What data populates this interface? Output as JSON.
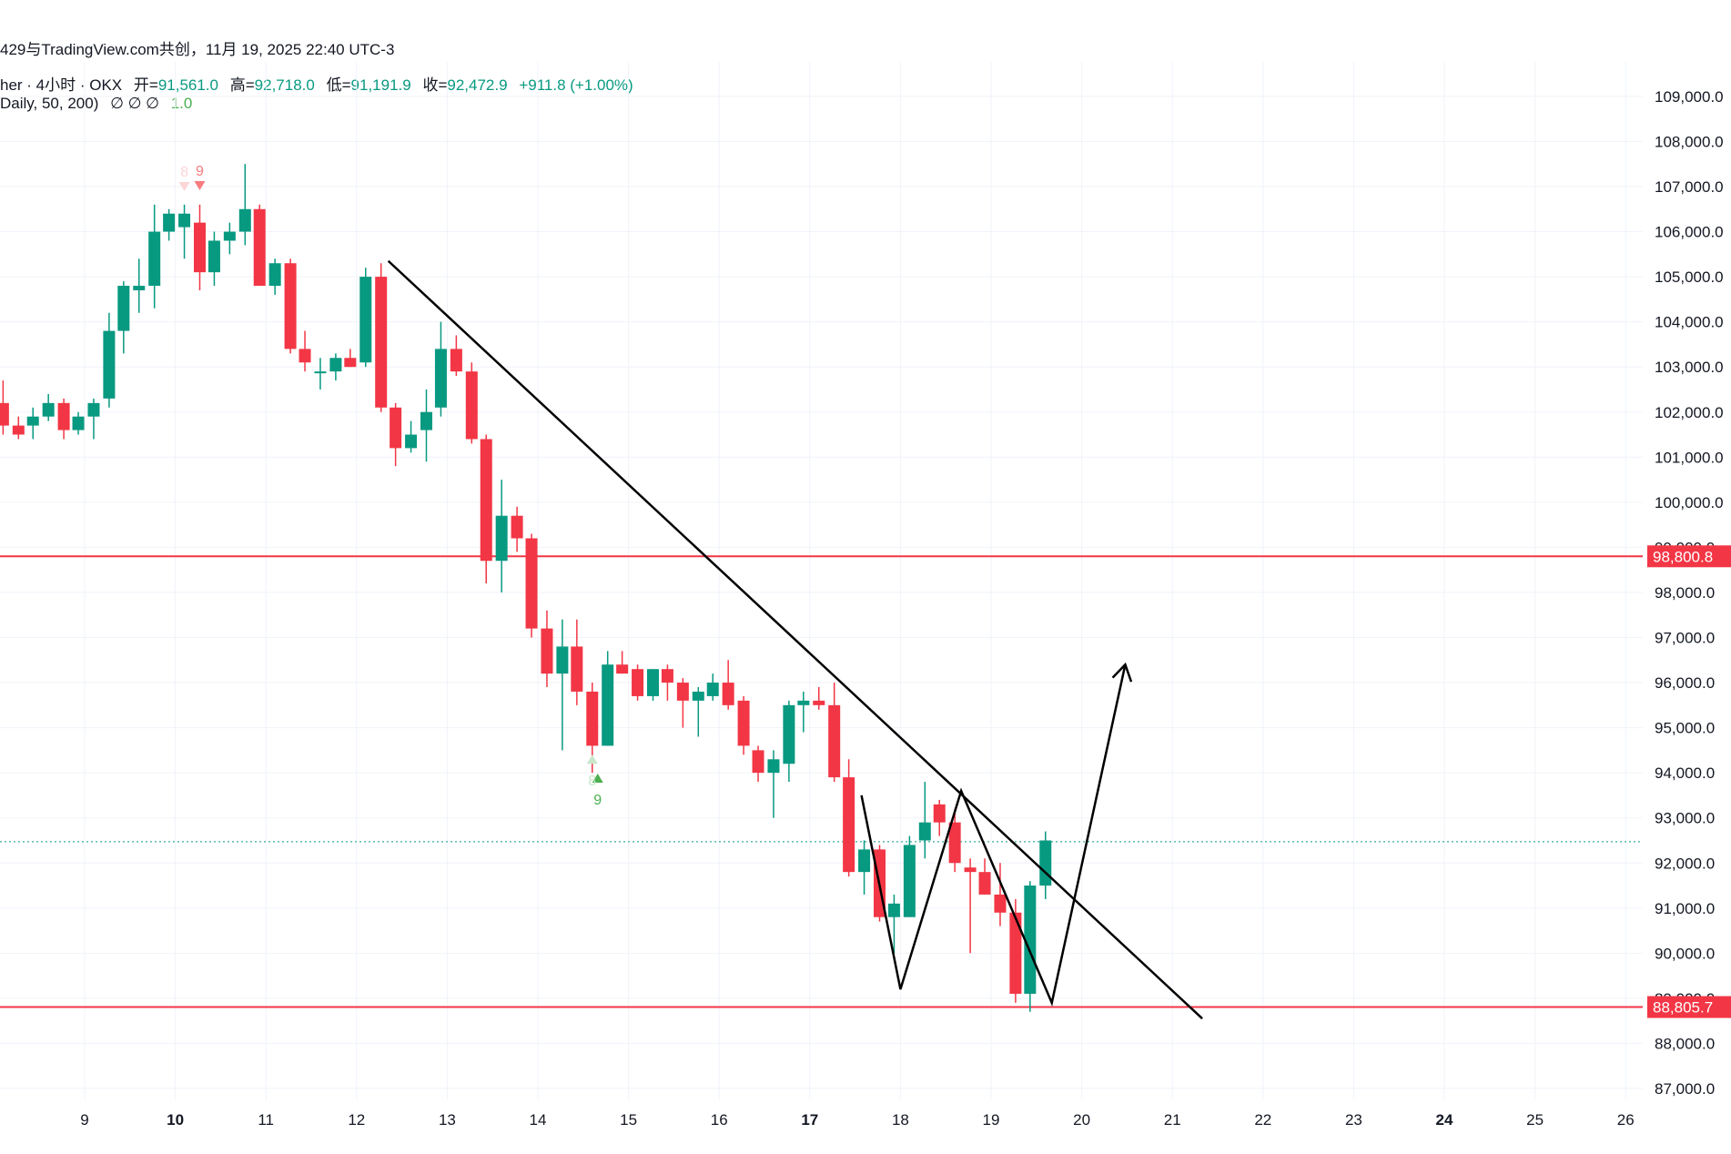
{
  "header": {
    "share_text": "429与TradingView.com共创，11月 19, 2025 22:40 UTC-3",
    "symbol": "her · 4小时 · OKX",
    "open_label": "开=",
    "open_value": "91,561.0",
    "high_label": "高=",
    "high_value": "92,718.0",
    "low_label": "低=",
    "low_value": "91,191.9",
    "close_label": "收=",
    "close_value": "92,472.9",
    "change": "+911.8 (+1.00%)",
    "indicator": "Daily, 50, 200)",
    "indicator_values": "∅  ∅  ∅",
    "indicator_last": "1.0"
  },
  "colors": {
    "up": "#089981",
    "down": "#f23645",
    "level": "#f23645",
    "grid": "#f0f3fa",
    "text": "#131722",
    "axis_text": "#131722"
  },
  "chart_data": {
    "type": "candlestick",
    "timeframe": "4小时",
    "exchange": "OKX",
    "ylim": [
      86700,
      109500
    ],
    "y_ticks": [
      "87,000.0",
      "88,000.0",
      "89,000.0",
      "90,000.0",
      "91,000.0",
      "92,000.0",
      "93,000.0",
      "94,000.0",
      "95,000.0",
      "96,000.0",
      "97,000.0",
      "98,000.0",
      "99,000.0",
      "100,000.0",
      "101,000.0",
      "102,000.0",
      "103,000.0",
      "104,000.0",
      "105,000.0",
      "106,000.0",
      "107,000.0",
      "108,000.0",
      "109,000.0"
    ],
    "x_labels": [
      {
        "t": 9,
        "label": "9",
        "bold": false
      },
      {
        "t": 10,
        "label": "10",
        "bold": true
      },
      {
        "t": 11,
        "label": "11",
        "bold": false
      },
      {
        "t": 12,
        "label": "12",
        "bold": false
      },
      {
        "t": 13,
        "label": "13",
        "bold": false
      },
      {
        "t": 14,
        "label": "14",
        "bold": false
      },
      {
        "t": 15,
        "label": "15",
        "bold": false
      },
      {
        "t": 16,
        "label": "16",
        "bold": false
      },
      {
        "t": 17,
        "label": "17",
        "bold": true
      },
      {
        "t": 18,
        "label": "18",
        "bold": false
      },
      {
        "t": 19,
        "label": "19",
        "bold": false
      },
      {
        "t": 20,
        "label": "20",
        "bold": false
      },
      {
        "t": 21,
        "label": "21",
        "bold": false
      },
      {
        "t": 22,
        "label": "22",
        "bold": false
      },
      {
        "t": 23,
        "label": "23",
        "bold": false
      },
      {
        "t": 24,
        "label": "24",
        "bold": true
      },
      {
        "t": 25,
        "label": "25",
        "bold": false
      },
      {
        "t": 26,
        "label": "26",
        "bold": false
      }
    ],
    "candles": [
      [
        8.1,
        102200,
        102700,
        101500,
        101700
      ],
      [
        8.27,
        101700,
        101900,
        101400,
        101500
      ],
      [
        8.43,
        101700,
        102100,
        101400,
        101900
      ],
      [
        8.6,
        101900,
        102400,
        101800,
        102200
      ],
      [
        8.77,
        102200,
        102300,
        101400,
        101600
      ],
      [
        8.93,
        101600,
        102000,
        101500,
        101900
      ],
      [
        9.1,
        101900,
        102300,
        101400,
        102200
      ],
      [
        9.27,
        102300,
        104200,
        102100,
        103800
      ],
      [
        9.43,
        103800,
        104900,
        103300,
        104800
      ],
      [
        9.6,
        104700,
        105400,
        104200,
        104800
      ],
      [
        9.77,
        104800,
        106600,
        104300,
        106000
      ],
      [
        9.93,
        106000,
        106500,
        105800,
        106400
      ],
      [
        10.1,
        106100,
        106600,
        105400,
        106400
      ],
      [
        10.27,
        106200,
        106600,
        104700,
        105100
      ],
      [
        10.43,
        105100,
        106000,
        104800,
        105800
      ],
      [
        10.6,
        105800,
        106200,
        105500,
        106000
      ],
      [
        10.77,
        106000,
        107500,
        105700,
        106500
      ],
      [
        10.93,
        106500,
        106600,
        104800,
        104800
      ],
      [
        11.1,
        104800,
        105400,
        104600,
        105300
      ],
      [
        11.27,
        105300,
        105400,
        103300,
        103400
      ],
      [
        11.43,
        103400,
        103800,
        102900,
        103100
      ],
      [
        11.6,
        102900,
        103200,
        102500,
        102900
      ],
      [
        11.77,
        102900,
        103300,
        102700,
        103200
      ],
      [
        11.93,
        103200,
        103400,
        103000,
        103000
      ],
      [
        12.1,
        103100,
        105200,
        103000,
        105000
      ],
      [
        12.27,
        105000,
        105300,
        102000,
        102100
      ],
      [
        12.43,
        102100,
        102200,
        100800,
        101200
      ],
      [
        12.6,
        101200,
        101800,
        101100,
        101500
      ],
      [
        12.77,
        101600,
        102500,
        100900,
        102000
      ],
      [
        12.93,
        102100,
        104000,
        101900,
        103400
      ],
      [
        13.1,
        103400,
        103700,
        102800,
        102900
      ],
      [
        13.27,
        102900,
        103100,
        101300,
        101400
      ],
      [
        13.43,
        101400,
        101500,
        98200,
        98700
      ],
      [
        13.6,
        98700,
        100500,
        98000,
        99700
      ],
      [
        13.77,
        99700,
        99900,
        98900,
        99200
      ],
      [
        13.93,
        99200,
        99300,
        97000,
        97200
      ],
      [
        14.1,
        97200,
        97600,
        95900,
        96200
      ],
      [
        14.27,
        96200,
        97400,
        94500,
        96800
      ],
      [
        14.43,
        96800,
        97400,
        95500,
        95800
      ],
      [
        14.6,
        95800,
        96000,
        94000,
        94600
      ],
      [
        14.77,
        94600,
        96700,
        94600,
        96400
      ],
      [
        14.93,
        96400,
        96700,
        96200,
        96200
      ],
      [
        15.1,
        96300,
        96400,
        95600,
        95700
      ],
      [
        15.27,
        95700,
        96300,
        95600,
        96300
      ],
      [
        15.43,
        96300,
        96400,
        95600,
        96000
      ],
      [
        15.6,
        96000,
        96100,
        95000,
        95600
      ],
      [
        15.77,
        95600,
        95900,
        94800,
        95800
      ],
      [
        15.93,
        95700,
        96200,
        95600,
        96000
      ],
      [
        16.1,
        96000,
        96500,
        95400,
        95500
      ],
      [
        16.27,
        95600,
        95700,
        94400,
        94600
      ],
      [
        16.43,
        94500,
        94600,
        93800,
        94000
      ],
      [
        16.6,
        94000,
        94500,
        93000,
        94300
      ],
      [
        16.77,
        94200,
        95600,
        93800,
        95500
      ],
      [
        16.93,
        95500,
        95800,
        94900,
        95600
      ],
      [
        17.1,
        95600,
        95900,
        95400,
        95500
      ],
      [
        17.27,
        95500,
        96000,
        93800,
        93900
      ],
      [
        17.43,
        93900,
        94300,
        91700,
        91800
      ],
      [
        17.6,
        91800,
        92500,
        91300,
        92300
      ],
      [
        17.77,
        92300,
        92400,
        90700,
        90800
      ],
      [
        17.93,
        90800,
        91300,
        90000,
        91100
      ],
      [
        18.1,
        90800,
        92600,
        90800,
        92400
      ],
      [
        18.27,
        92500,
        93800,
        92100,
        92900
      ],
      [
        18.43,
        93300,
        93400,
        92600,
        92900
      ],
      [
        18.6,
        92900,
        93200,
        91800,
        92000
      ],
      [
        18.77,
        91900,
        92100,
        90000,
        91800
      ],
      [
        18.93,
        91800,
        92100,
        91300,
        91300
      ],
      [
        19.1,
        91300,
        92000,
        90600,
        90900
      ],
      [
        19.27,
        90900,
        91200,
        88900,
        89100
      ],
      [
        19.43,
        89100,
        91600,
        88700,
        91500
      ],
      [
        19.6,
        91500,
        92700,
        91200,
        92500
      ]
    ],
    "td_markers": [
      {
        "t": 10.27,
        "price": 107120,
        "label": "9",
        "dir": "down",
        "color": "#f77c80"
      },
      {
        "t": 10.1,
        "price": 107100,
        "label": "8",
        "dir": "down",
        "color": "#fcd5d7",
        "faded": true
      },
      {
        "t": 14.66,
        "price": 93780,
        "label": "9",
        "dir": "up",
        "color": "#4caf50"
      },
      {
        "t": 14.6,
        "price": 94200,
        "label": "8",
        "dir": "up",
        "color": "#c8e6c9",
        "faded": true
      }
    ],
    "levels": [
      {
        "name": "resistance",
        "price": 98800.8,
        "label": "98,800.8"
      },
      {
        "name": "support",
        "price": 88805.7,
        "label": "88,805.7"
      }
    ],
    "last_price": 92472.9,
    "trendline": [
      [
        12.35,
        105350
      ],
      [
        21.33,
        88550
      ]
    ],
    "pattern_path": [
      [
        17.57,
        93500
      ],
      [
        18.0,
        89200
      ],
      [
        18.67,
        93600
      ],
      [
        19.67,
        88900
      ],
      [
        20.48,
        96400
      ]
    ],
    "annotations": [
      "descending trendline",
      "double-bottom projection arrow"
    ]
  }
}
